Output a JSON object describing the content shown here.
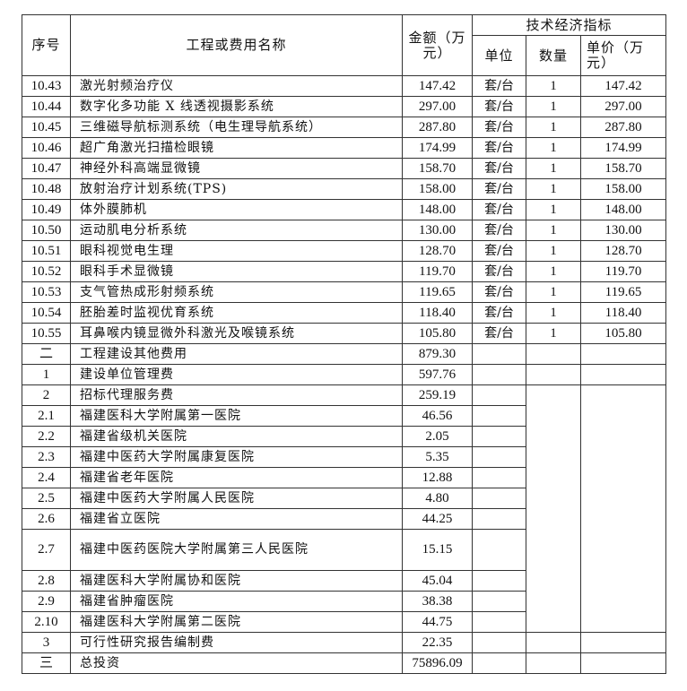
{
  "header": {
    "seq": "序号",
    "name": "工程或费用名称",
    "amount": "金额（万元）",
    "tech": "技术经济指标",
    "unit": "单位",
    "qty": "数量",
    "price": "单价（万元）"
  },
  "equipment_rows": [
    {
      "seq": "10.43",
      "name": "激光射频治疗仪",
      "amount": "147.42",
      "unit": "套/台",
      "qty": "1",
      "price": "147.42"
    },
    {
      "seq": "10.44",
      "name": "数字化多功能 X 线透视摄影系统",
      "amount": "297.00",
      "unit": "套/台",
      "qty": "1",
      "price": "297.00"
    },
    {
      "seq": "10.45",
      "name": "三维磁导航标测系统（电生理导航系统）",
      "amount": "287.80",
      "unit": "套/台",
      "qty": "1",
      "price": "287.80"
    },
    {
      "seq": "10.46",
      "name": "超广角激光扫描检眼镜",
      "amount": "174.99",
      "unit": "套/台",
      "qty": "1",
      "price": "174.99"
    },
    {
      "seq": "10.47",
      "name": "神经外科高端显微镜",
      "amount": "158.70",
      "unit": "套/台",
      "qty": "1",
      "price": "158.70"
    },
    {
      "seq": "10.48",
      "name": "放射治疗计划系统(TPS)",
      "amount": "158.00",
      "unit": "套/台",
      "qty": "1",
      "price": "158.00"
    },
    {
      "seq": "10.49",
      "name": "体外膜肺机",
      "amount": "148.00",
      "unit": "套/台",
      "qty": "1",
      "price": "148.00"
    },
    {
      "seq": "10.50",
      "name": "运动肌电分析系统",
      "amount": "130.00",
      "unit": "套/台",
      "qty": "1",
      "price": "130.00"
    },
    {
      "seq": "10.51",
      "name": "眼科视觉电生理",
      "amount": "128.70",
      "unit": "套/台",
      "qty": "1",
      "price": "128.70"
    },
    {
      "seq": "10.52",
      "name": "眼科手术显微镜",
      "amount": "119.70",
      "unit": "套/台",
      "qty": "1",
      "price": "119.70"
    },
    {
      "seq": "10.53",
      "name": "支气管热成形射频系统",
      "amount": "119.65",
      "unit": "套/台",
      "qty": "1",
      "price": "119.65"
    },
    {
      "seq": "10.54",
      "name": "胚胎差时监视优育系统",
      "amount": "118.40",
      "unit": "套/台",
      "qty": "1",
      "price": "118.40"
    },
    {
      "seq": "10.55",
      "name": "耳鼻喉内镜显微外科激光及喉镜系统",
      "amount": "105.80",
      "unit": "套/台",
      "qty": "1",
      "price": "105.80"
    }
  ],
  "other": {
    "seq": "二",
    "name": "工程建设其他费用",
    "amount": "879.30"
  },
  "mgmt": {
    "seq": "1",
    "name": "建设单位管理费",
    "amount": "597.76"
  },
  "bidding": {
    "seq": "2",
    "name": "招标代理服务费",
    "amount": "259.19"
  },
  "bidding_rows": [
    {
      "seq": "2.1",
      "name": "福建医科大学附属第一医院",
      "amount": "46.56"
    },
    {
      "seq": "2.2",
      "name": "福建省级机关医院",
      "amount": "2.05"
    },
    {
      "seq": "2.3",
      "name": "福建中医药大学附属康复医院",
      "amount": "5.35"
    },
    {
      "seq": "2.4",
      "name": "福建省老年医院",
      "amount": "12.88"
    },
    {
      "seq": "2.5",
      "name": "福建中医药大学附属人民医院",
      "amount": "4.80"
    },
    {
      "seq": "2.6",
      "name": "福建省立医院",
      "amount": "44.25"
    },
    {
      "seq": "2.7",
      "name": "福建中医药医院大学附属第三人民医院",
      "amount": "15.15"
    },
    {
      "seq": "2.8",
      "name": "福建医科大学附属协和医院",
      "amount": "45.04"
    },
    {
      "seq": "2.9",
      "name": "福建省肿瘤医院",
      "amount": "38.38"
    },
    {
      "seq": "2.10",
      "name": "福建医科大学附属第二医院",
      "amount": "44.75"
    }
  ],
  "feasibility": {
    "seq": "3",
    "name": "可行性研究报告编制费",
    "amount": "22.35"
  },
  "total": {
    "seq": "三",
    "name": "总投资",
    "amount": "75896.09"
  }
}
